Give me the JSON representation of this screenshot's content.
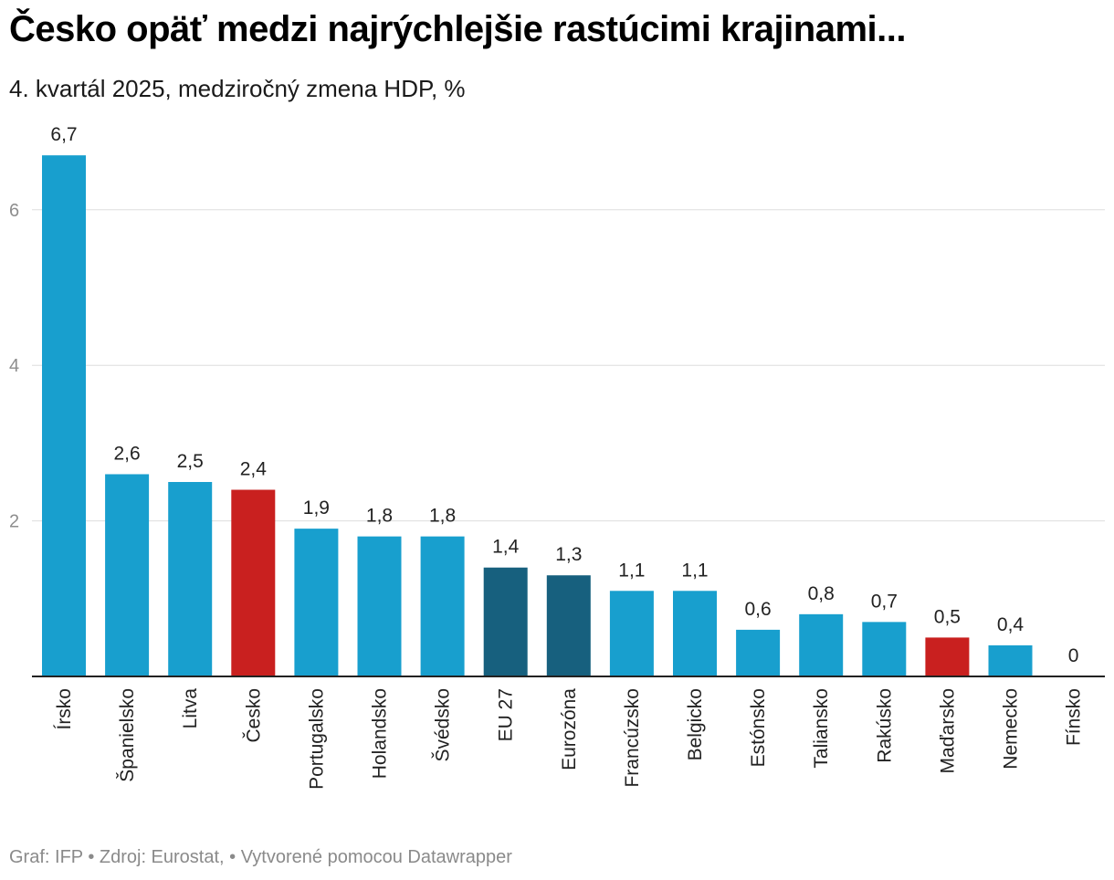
{
  "title": "Česko opäť medzi najrýchlejšie rastúcimi krajinami...",
  "subtitle": "4. kvartál 2025, medziročný zmena HDP, %",
  "footer": "Graf: IFP • Zdroj: Eurostat, • Vytvorené pomocou Datawrapper",
  "colors": {
    "default": "#189fce",
    "highlight": "#c9201f",
    "aggregate": "#17607e",
    "grid": "#dddddd",
    "axis": "#222222"
  },
  "chart_data": {
    "type": "bar",
    "title": "Česko opäť medzi najrýchlejšie rastúcimi krajinami...",
    "subtitle": "4. kvartál 2025, medziročný zmena HDP, %",
    "xlabel": "",
    "ylabel": "",
    "ylim": [
      0,
      6.7
    ],
    "yticks": [
      2,
      4,
      6
    ],
    "grid": true,
    "categories": [
      "Írsko",
      "Španielsko",
      "Litva",
      "Česko",
      "Portugalsko",
      "Holandsko",
      "Švédsko",
      "EU 27",
      "Eurozóna",
      "Francúzsko",
      "Belgicko",
      "Estónsko",
      "Taliansko",
      "Rakúsko",
      "Maďarsko",
      "Nemecko",
      "Fínsko"
    ],
    "values": [
      6.7,
      2.6,
      2.5,
      2.4,
      1.9,
      1.8,
      1.8,
      1.4,
      1.3,
      1.1,
      1.1,
      0.6,
      0.8,
      0.7,
      0.5,
      0.4,
      0
    ],
    "value_labels": [
      "6,7",
      "2,6",
      "2,5",
      "2,4",
      "1,9",
      "1,8",
      "1,8",
      "1,4",
      "1,3",
      "1,1",
      "1,1",
      "0,6",
      "0,8",
      "0,7",
      "0,5",
      "0,4",
      "0"
    ],
    "bar_colors": [
      "default",
      "default",
      "default",
      "highlight",
      "default",
      "default",
      "default",
      "aggregate",
      "aggregate",
      "default",
      "default",
      "default",
      "default",
      "default",
      "highlight",
      "default",
      "default"
    ]
  }
}
